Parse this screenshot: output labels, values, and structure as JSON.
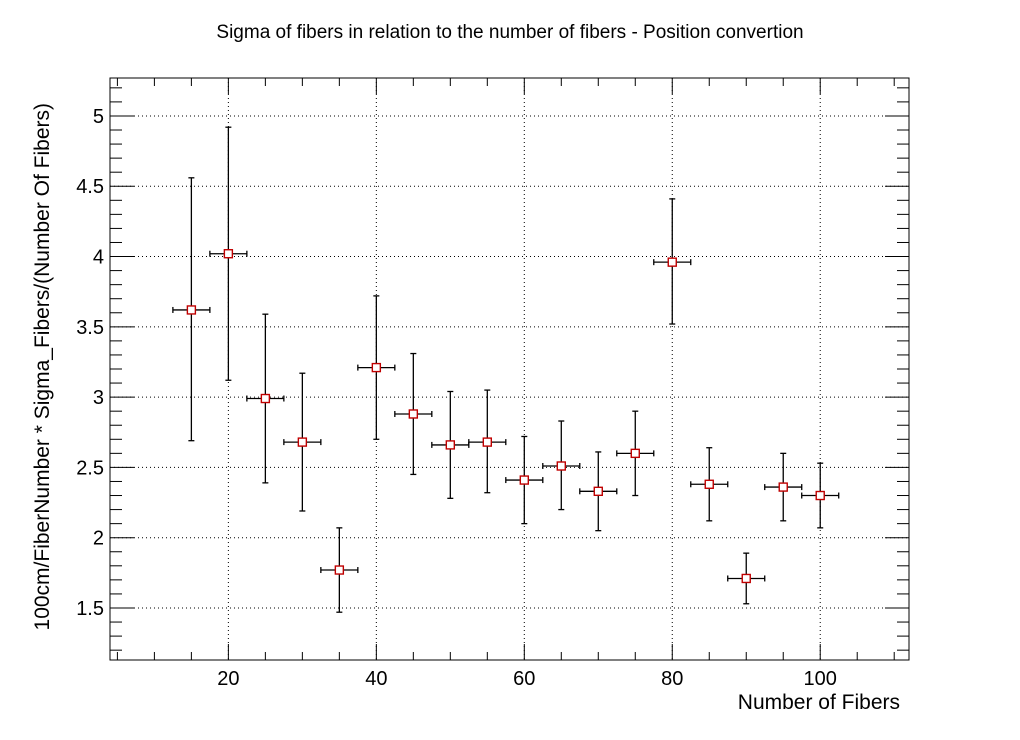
{
  "chart_data": {
    "type": "scatter",
    "title": "Sigma of fibers in relation to the number of fibers - Position convertion",
    "xlabel": "Number of Fibers",
    "ylabel": "100cm/FiberNumber * Sigma_Fibers/(Number Of Fibers)",
    "xlim": [
      4,
      112
    ],
    "ylim": [
      1.13,
      5.27
    ],
    "xticks": [
      "20",
      "40",
      "60",
      "80",
      "100"
    ],
    "yticks": [
      "1.5",
      "2",
      "2.5",
      "3",
      "3.5",
      "4",
      "4.5",
      "5"
    ],
    "grid": true,
    "marker_color": "#c00000",
    "x_error": 2.5,
    "points": [
      {
        "x": 15,
        "y": 3.62,
        "yerr_low": 0.93,
        "yerr_high": 0.94
      },
      {
        "x": 20,
        "y": 4.02,
        "yerr_low": 0.9,
        "yerr_high": 0.9
      },
      {
        "x": 25,
        "y": 2.99,
        "yerr_low": 0.6,
        "yerr_high": 0.6
      },
      {
        "x": 30,
        "y": 2.68,
        "yerr_low": 0.49,
        "yerr_high": 0.49
      },
      {
        "x": 35,
        "y": 1.77,
        "yerr_low": 0.3,
        "yerr_high": 0.3
      },
      {
        "x": 40,
        "y": 3.21,
        "yerr_low": 0.51,
        "yerr_high": 0.51
      },
      {
        "x": 45,
        "y": 2.88,
        "yerr_low": 0.43,
        "yerr_high": 0.43
      },
      {
        "x": 50,
        "y": 2.66,
        "yerr_low": 0.38,
        "yerr_high": 0.38
      },
      {
        "x": 55,
        "y": 2.68,
        "yerr_low": 0.36,
        "yerr_high": 0.37
      },
      {
        "x": 60,
        "y": 2.41,
        "yerr_low": 0.31,
        "yerr_high": 0.31
      },
      {
        "x": 65,
        "y": 2.51,
        "yerr_low": 0.31,
        "yerr_high": 0.32
      },
      {
        "x": 70,
        "y": 2.33,
        "yerr_low": 0.28,
        "yerr_high": 0.28
      },
      {
        "x": 75,
        "y": 2.6,
        "yerr_low": 0.3,
        "yerr_high": 0.3
      },
      {
        "x": 80,
        "y": 3.96,
        "yerr_low": 0.44,
        "yerr_high": 0.45
      },
      {
        "x": 85,
        "y": 2.38,
        "yerr_low": 0.26,
        "yerr_high": 0.26
      },
      {
        "x": 90,
        "y": 1.71,
        "yerr_low": 0.18,
        "yerr_high": 0.18
      },
      {
        "x": 95,
        "y": 2.36,
        "yerr_low": 0.24,
        "yerr_high": 0.24
      },
      {
        "x": 100,
        "y": 2.3,
        "yerr_low": 0.23,
        "yerr_high": 0.23
      }
    ]
  }
}
